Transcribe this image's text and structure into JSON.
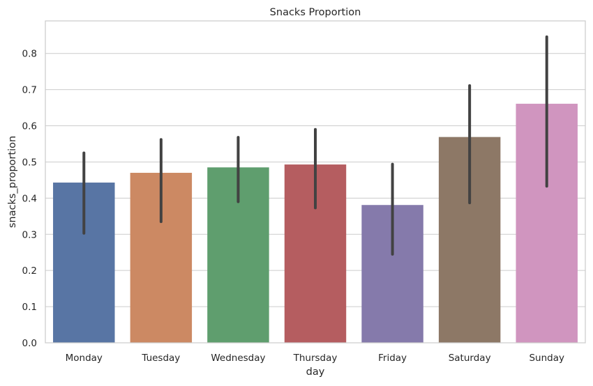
{
  "chart_data": {
    "type": "bar",
    "title": "Snacks Proportion",
    "xlabel": "day",
    "ylabel": "snacks_proportion",
    "categories": [
      "Monday",
      "Tuesday",
      "Wednesday",
      "Thursday",
      "Friday",
      "Saturday",
      "Sunday"
    ],
    "values": [
      0.443,
      0.47,
      0.485,
      0.493,
      0.381,
      0.569,
      0.661
    ],
    "error_low": [
      0.303,
      0.335,
      0.39,
      0.373,
      0.245,
      0.387,
      0.433
    ],
    "error_high": [
      0.525,
      0.562,
      0.568,
      0.59,
      0.494,
      0.711,
      0.846
    ],
    "colors": [
      "#5875a4",
      "#cc8963",
      "#5f9e6e",
      "#b55d60",
      "#857aab",
      "#8d7866",
      "#d095bf"
    ],
    "errorbar_color": "#424242",
    "ylim": [
      0,
      0.89
    ],
    "yticks": [
      0.0,
      0.1,
      0.2,
      0.3,
      0.4,
      0.5,
      0.6,
      0.7,
      0.8
    ],
    "ytick_labels": [
      "0.0",
      "0.1",
      "0.2",
      "0.3",
      "0.4",
      "0.5",
      "0.6",
      "0.7",
      "0.8"
    ],
    "grid": "horizontal",
    "legend": "none"
  }
}
